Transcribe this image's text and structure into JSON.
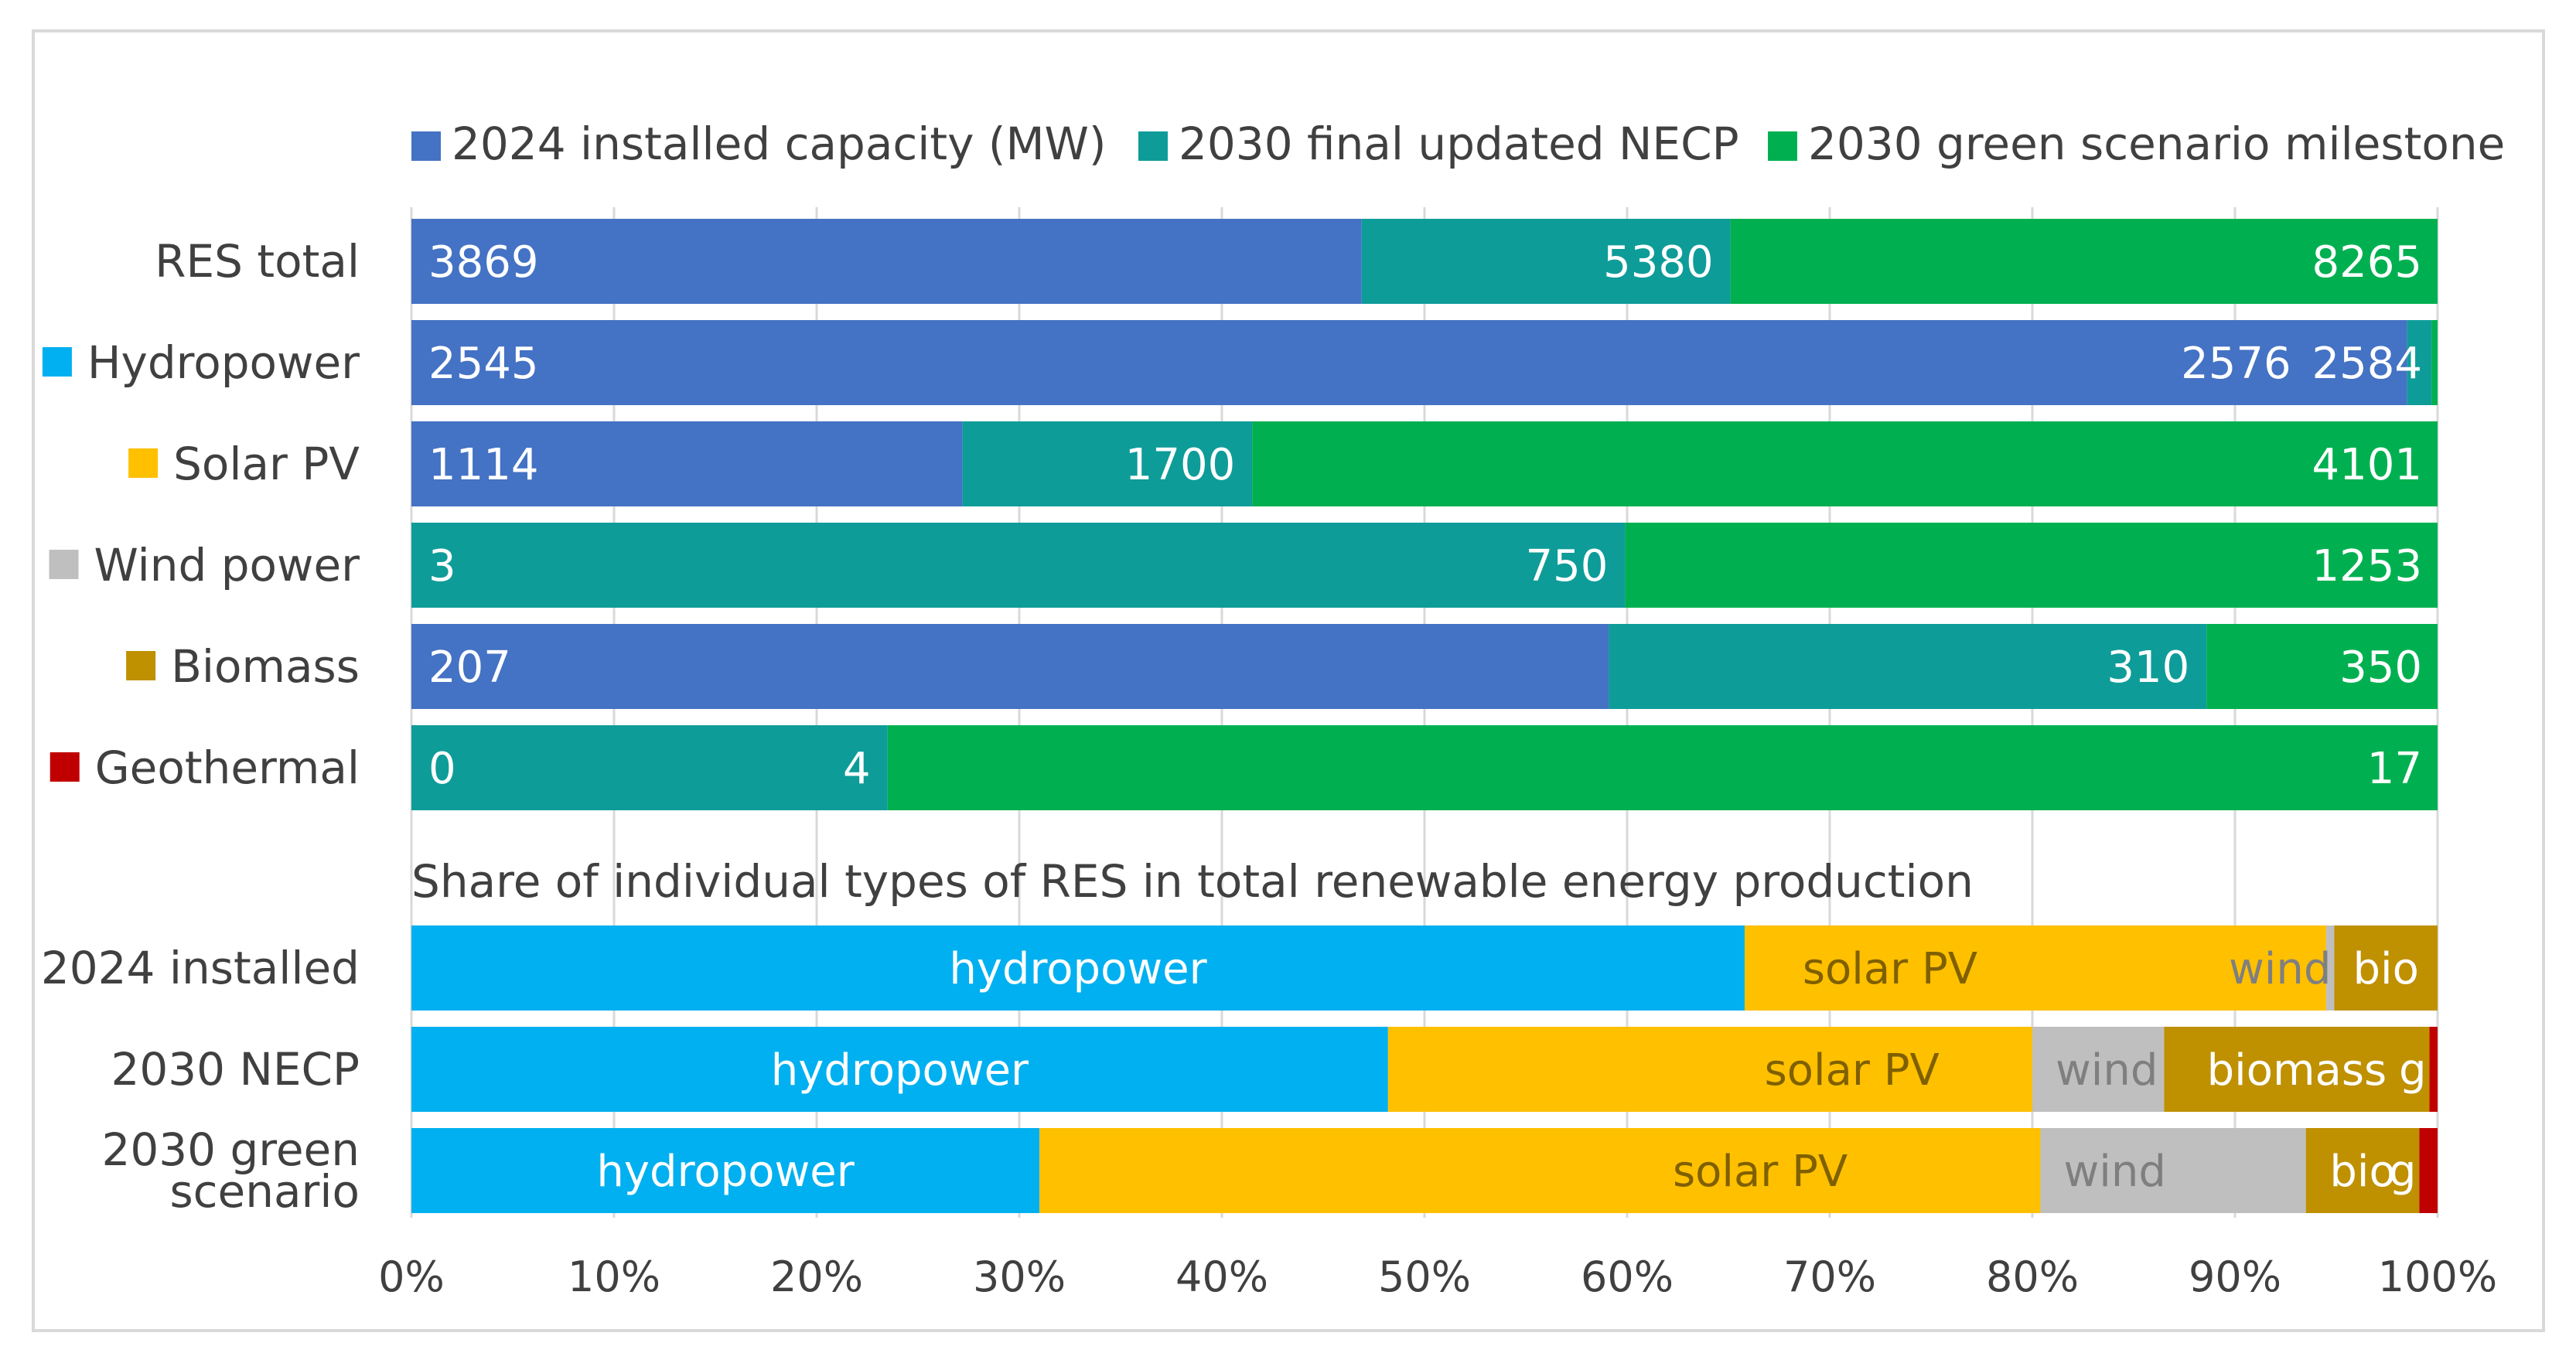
{
  "chart_data": {
    "type": "bar",
    "top_chart": {
      "legend": [
        {
          "label": "2024 installed capacity  (MW)",
          "color": "#4472C4"
        },
        {
          "label": "2030 final updated NECP",
          "color": "#0E9C99"
        },
        {
          "label": "2030 green scenario milestone",
          "color": "#00B050"
        }
      ],
      "categories": [
        {
          "label": "RES total",
          "swatch": null,
          "bounds": [
            0.469,
            0.651,
            1.0
          ],
          "labels": [
            "3869",
            "5380",
            "8265"
          ]
        },
        {
          "label": "Hydropower",
          "swatch": "#00B0F0",
          "bounds": [
            0.985,
            0.997,
            1.0
          ],
          "labels": [
            "2545",
            "2576",
            "2584"
          ]
        },
        {
          "label": "Solar PV",
          "swatch": "#FFC000",
          "bounds": [
            0.272,
            0.415,
            1.0
          ],
          "labels": [
            "1114",
            "1700",
            "4101"
          ]
        },
        {
          "label": "Wind power",
          "swatch": "#BFBFBF",
          "bounds": [
            0.0,
            0.599,
            1.0
          ],
          "labels": [
            "3",
            "750",
            "1253"
          ]
        },
        {
          "label": "Biomass",
          "swatch": "#BF9000",
          "bounds": [
            0.591,
            0.886,
            1.0
          ],
          "labels": [
            "207",
            "310",
            "350"
          ]
        },
        {
          "label": "Geothermal",
          "swatch": "#C00000",
          "bounds": [
            0.0,
            0.235,
            1.0
          ],
          "labels": [
            "0",
            "4",
            "17"
          ]
        }
      ]
    },
    "bottom_chart": {
      "title": "Share of individual types of RES in total renewable energy production",
      "categories": [
        "2024 installed",
        "2030 NECP",
        "2030 green scenario"
      ],
      "segment_colors": {
        "hydropower": "#00B0F0",
        "solar": "#FFC000",
        "wind": "#BFBFBF",
        "bio": "#BF9000",
        "geo": "#C00000"
      },
      "series": [
        {
          "name": "2024 installed",
          "values": [
            0.658,
            0.287,
            0.004,
            0.051,
            0.0
          ],
          "labels": [
            "hydropower",
            "solar PV",
            "wind",
            "bio",
            ""
          ]
        },
        {
          "name": "2030 NECP",
          "values": [
            0.482,
            0.318,
            0.065,
            0.131,
            0.004
          ],
          "labels": [
            "hydropower",
            "solar PV",
            "wind",
            "biomass",
            "g"
          ]
        },
        {
          "name": "2030 green scenario",
          "values": [
            0.31,
            0.494,
            0.131,
            0.056,
            0.009
          ],
          "labels": [
            "hydropower",
            "solar PV",
            "wind",
            "bio",
            "g"
          ]
        }
      ]
    },
    "x_axis": {
      "ticks": [
        "0%",
        "10%",
        "20%",
        "30%",
        "40%",
        "50%",
        "60%",
        "70%",
        "80%",
        "90%",
        "100%"
      ],
      "range": [
        0,
        1
      ],
      "grid": true
    }
  }
}
